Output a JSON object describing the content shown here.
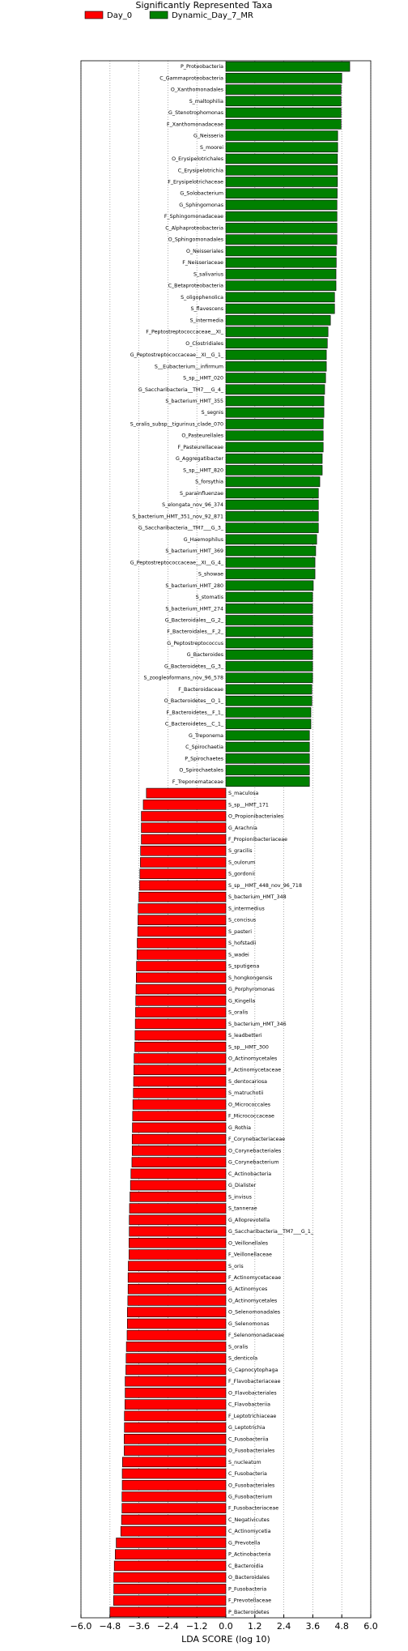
{
  "chart_data": {
    "type": "barh",
    "title": "Significantly Represented Taxa",
    "x_label": "LDA SCORE (log 10)",
    "xlim": [
      -6.0,
      6.0
    ],
    "xticks": [
      {
        "value": -6.0,
        "label": "−6.0"
      },
      {
        "value": -4.8,
        "label": "−4.8"
      },
      {
        "value": -3.6,
        "label": "−3.6"
      },
      {
        "value": -2.4,
        "label": "−2.4"
      },
      {
        "value": -1.2,
        "label": "−1.2"
      },
      {
        "value": 0.0,
        "label": "0.0"
      },
      1.2,
      2.4,
      3.6,
      4.8,
      {
        "value": 6.0,
        "label": "6.0"
      }
    ],
    "grid": true,
    "series": [
      {
        "name": "Day_0",
        "color": "#ff0000",
        "categories": [
          "S_maculosa",
          "S_sp__HMT_171",
          "O_Propionibacteriales",
          "G_Arachnia",
          "F_Propionibacteriaceae",
          "S_gracilis",
          "S_oulorum",
          "S_gordonii",
          "S_sp__HMT_448_nov_96_718",
          "S_bacterium_HMT_348",
          "S_intermedius",
          "S_concisus",
          "S_pasteri",
          "S_hofstadii",
          "S_wadei",
          "S_sputigena",
          "S_hongkongensis",
          "G_Porphyromonas",
          "G_Kingella",
          "S_oralis",
          "S_bacterium_HMT_346",
          "S_leadbetteri",
          "S_sp__HMT_300",
          "O_Actinomycetales",
          "F_Actinomycetaceae",
          "S_dentocariosa",
          "S_matruchotii",
          "O_Micrococcales",
          "F_Micrococcaceae",
          "G_Rothia",
          "F_Corynebacteriaceae",
          "O_Corynebacteriales",
          "G_Corynebacterium",
          "C_Actinobacteria",
          "G_Dialister",
          "S_invisus",
          "S_tannerae",
          "G_Alloprevotella",
          "G_Saccharibacteria__TM7___G_1_",
          "O_Veillonellales",
          "F_Veillonellaceae",
          "S_oris",
          "F_Actinomycetaceae",
          "G_Actinomyces",
          "O_Actinomycetales",
          "O_Selenomonadales",
          "G_Selenomonas",
          "F_Selenomonadaceae",
          "S_oralis",
          "S_denticola",
          "G_Capnocytophaga",
          "F_Flavobacteriaceae",
          "O_Flavobacteriales",
          "C_Flavobacteriia",
          "F_Leptotrichiaceae",
          "G_Leptotrichia",
          "C_Fusobacteriia",
          "O_Fusobacteriales",
          "S_nucleatum",
          "C_Fusobacteria",
          "O_Fusobacteriales",
          "G_Fusobacterium",
          "F_Fusobacteriaceae",
          "C_Negativicutes",
          "C_Actinomycetia",
          "G_Prevotella",
          "P_Actinobacteria",
          "C_Bacteroidia",
          "O_Bacteroidales",
          "P_Fusobacteria",
          "F_Prevotellaceae",
          "P_Bacteroidetes"
        ],
        "values": [
          -3.29,
          -3.42,
          -3.5,
          -3.5,
          -3.5,
          -3.53,
          -3.54,
          -3.56,
          -3.57,
          -3.6,
          -3.63,
          -3.64,
          -3.65,
          -3.67,
          -3.68,
          -3.7,
          -3.71,
          -3.72,
          -3.73,
          -3.74,
          -3.75,
          -3.76,
          -3.77,
          -3.8,
          -3.81,
          -3.82,
          -3.83,
          -3.85,
          -3.86,
          -3.87,
          -3.88,
          -3.88,
          -3.89,
          -3.93,
          -3.95,
          -3.97,
          -3.99,
          -4.0,
          -4.0,
          -4.01,
          -4.01,
          -4.04,
          -4.05,
          -4.05,
          -4.06,
          -4.08,
          -4.08,
          -4.09,
          -4.12,
          -4.13,
          -4.14,
          -4.17,
          -4.17,
          -4.18,
          -4.2,
          -4.2,
          -4.21,
          -4.21,
          -4.28,
          -4.29,
          -4.29,
          -4.3,
          -4.3,
          -4.32,
          -4.35,
          -4.54,
          -4.58,
          -4.62,
          -4.64,
          -4.64,
          -4.65,
          -4.8
        ]
      },
      {
        "name": "Dynamic_Day_7_MR",
        "color": "#008000",
        "categories": [
          "P_Proteobacteria",
          "C_Gammaproteobacteria",
          "O_Xanthomonadales",
          "S_maltophilia",
          "G_Stenotrophomonas",
          "F_Xanthomonadaceae",
          "G_Neisseria",
          "S_moorei",
          "O_Erysipelotrichales",
          "C_Erysipelotrichia",
          "F_Erysipelotrichaceae",
          "G_Solobacterium",
          "G_Sphingomonas",
          "F_Sphingomonadaceae",
          "C_Alphaproteobacteria",
          "O_Sphingomonadales",
          "O_Neisseriales",
          "F_Neisseriaceae",
          "S_salivarius",
          "C_Betaproteobacteria",
          "S_oligophenolica",
          "S_flavescens",
          "S_intermedia",
          "F_Peptostreptococcaceae__XI_",
          "O_Clostridiales",
          "G_Peptostreptococcaceae__XI__G_1_",
          "S__Eubacterium__infirmum",
          "S_sp__HMT_020",
          "G_Saccharibacteria__TM7___G_4_",
          "S_bacterium_HMT_355",
          "S_segnis",
          "S_oralis_subsp__tigurinus_clade_070",
          "O_Pasteurellales",
          "F_Pasteurellaceae",
          "G_Aggregatibacter",
          "S_sp__HMT_820",
          "S_forsythia",
          "S_parainfluenzae",
          "S_elongata_nov_96_374",
          "S_bacterium_HMT_351_nov_92_871",
          "G_Saccharibacteria__TM7___G_3_",
          "G_Haemophilus",
          "S_bacterium_HMT_369",
          "G_Peptostreptococcaceae__XI__G_4_",
          "S_showae",
          "S_bacterium_HMT_280",
          "S_stomatis",
          "S_bacterium_HMT_274",
          "G_Bacteroidales__G_2_",
          "F_Bacteroidales__F_2_",
          "G_Peptostreptococcus",
          "G_Bacteroides",
          "G_Bacteroidetes__G_3_",
          "S_zoogleoformans_nov_96_578",
          "F_Bacteroidaceae",
          "O_Bacteroidetes__O_1_",
          "F_Bacteroidetes__F_1_",
          "C_Bacteroidetes__C_1_",
          "G_Treponema",
          "C_Spirochaetia",
          "P_Spirochaetes",
          "O_Spirochaetales",
          "F_Treponemataceae"
        ],
        "values": [
          5.13,
          4.8,
          4.77,
          4.77,
          4.77,
          4.77,
          4.63,
          4.63,
          4.62,
          4.62,
          4.62,
          4.61,
          4.6,
          4.6,
          4.6,
          4.6,
          4.57,
          4.57,
          4.56,
          4.56,
          4.5,
          4.5,
          4.33,
          4.23,
          4.2,
          4.16,
          4.16,
          4.13,
          4.09,
          4.06,
          4.06,
          4.03,
          4.03,
          4.03,
          3.99,
          3.99,
          3.89,
          3.83,
          3.83,
          3.83,
          3.83,
          3.76,
          3.72,
          3.69,
          3.69,
          3.62,
          3.59,
          3.59,
          3.59,
          3.59,
          3.59,
          3.59,
          3.59,
          3.59,
          3.56,
          3.56,
          3.52,
          3.52,
          3.46,
          3.46,
          3.46,
          3.46,
          3.46
        ]
      }
    ]
  }
}
